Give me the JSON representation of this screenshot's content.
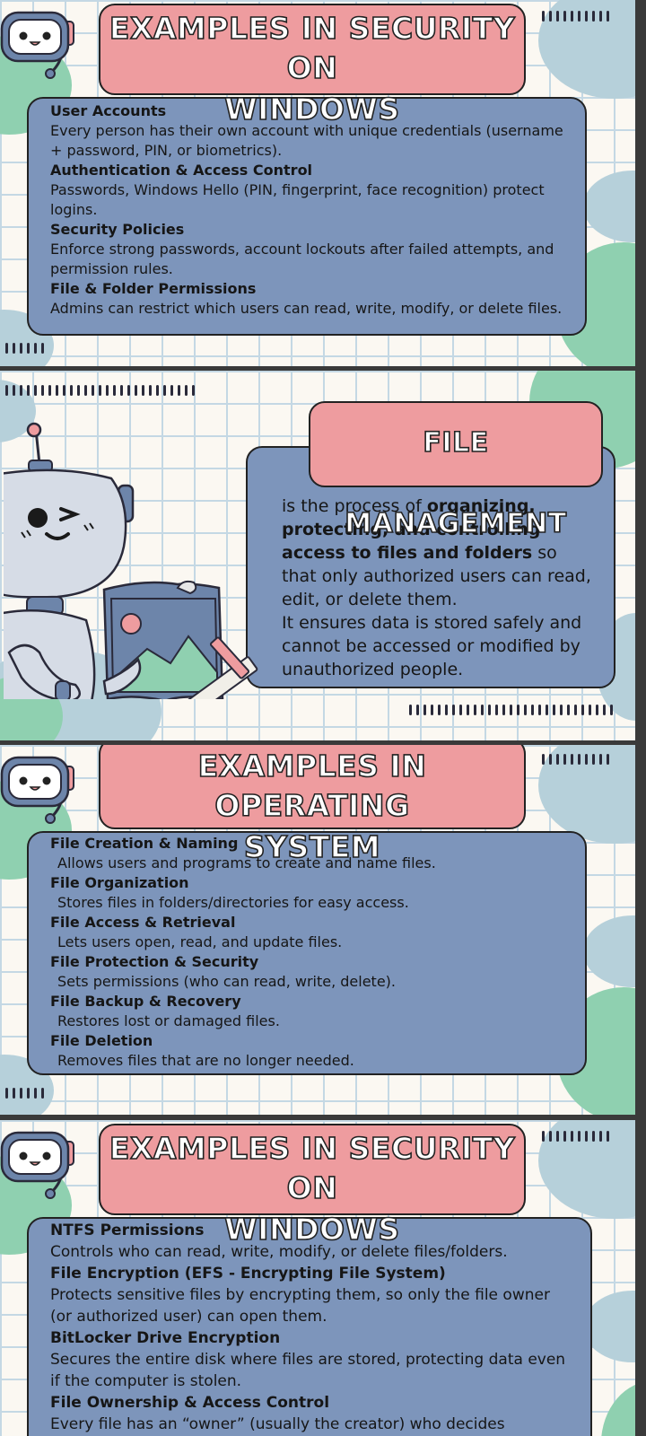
{
  "slide1": {
    "title_line1": "EXAMPLES IN SECURITY ON",
    "title_line2": "WINDOWS",
    "items": [
      {
        "title": "User Accounts",
        "desc": "Every person has their own account with unique credentials (username + password, PIN, or biometrics)."
      },
      {
        "title": "Authentication & Access Control",
        "desc": "Passwords, Windows Hello (PIN, fingerprint, face recognition) protect logins."
      },
      {
        "title": "Security Policies",
        "desc": "Enforce strong passwords, account lockouts after failed attempts, and permission rules."
      },
      {
        "title": "File & Folder Permissions",
        "desc": "Admins can restrict which users can read, write, modify, or delete files."
      }
    ]
  },
  "slide2": {
    "title": "FILE MANAGEMENT",
    "p1_intro": " is the process of ",
    "p1_bold": "organizing, protecting, and controlling access to files and folders",
    "p1_rest": " so that only authorized users can read, edit, or delete them.",
    "p2": "It ensures data is stored safely and cannot be accessed or modified by unauthorized people."
  },
  "slide3": {
    "title_line1": "EXAMPLES IN OPERATING",
    "title_line2": "SYSTEM",
    "items": [
      {
        "title": "File Creation & Naming",
        "desc": "Allows users and programs to create and name files."
      },
      {
        "title": "File Organization",
        "desc": "Stores files in folders/directories for easy access."
      },
      {
        "title": "File Access & Retrieval",
        "desc": "Lets users open, read, and update files."
      },
      {
        "title": "File Protection & Security",
        "desc": "Sets permissions (who can read, write, delete)."
      },
      {
        "title": "File Backup & Recovery",
        "desc": "Restores lost or damaged files."
      },
      {
        "title": "File Deletion",
        "desc": "Removes files that are no longer needed."
      }
    ]
  },
  "slide4": {
    "title_line1": "EXAMPLES IN SECURITY ON",
    "title_line2": "WINDOWS",
    "items": [
      {
        "title": "NTFS Permissions",
        "desc": "Controls who can read, write, modify, or delete files/folders."
      },
      {
        "title": "File Encryption (EFS - Encrypting File System)",
        "desc": "Protects sensitive files by encrypting them, so only the file owner (or authorized user) can open them."
      },
      {
        "title": "BitLocker Drive Encryption",
        "desc": "Secures the entire disk where files are stored, protecting data even if the computer is stolen."
      },
      {
        "title": "File Ownership & Access Control",
        "desc": "Every file has an “owner” (usually the creator) who decides"
      }
    ]
  },
  "colors": {
    "title_pink": "#ee9c9f",
    "content_blue": "#7d95bb",
    "blob_green": "#8fd0b0",
    "blob_blue": "#b6d0da",
    "grid_line": "#c4d8e4"
  },
  "icons": [
    "robot-head-icon",
    "robot-mascot-icon",
    "picture-frame-icon",
    "pencil-icon",
    "ruler-icon"
  ]
}
